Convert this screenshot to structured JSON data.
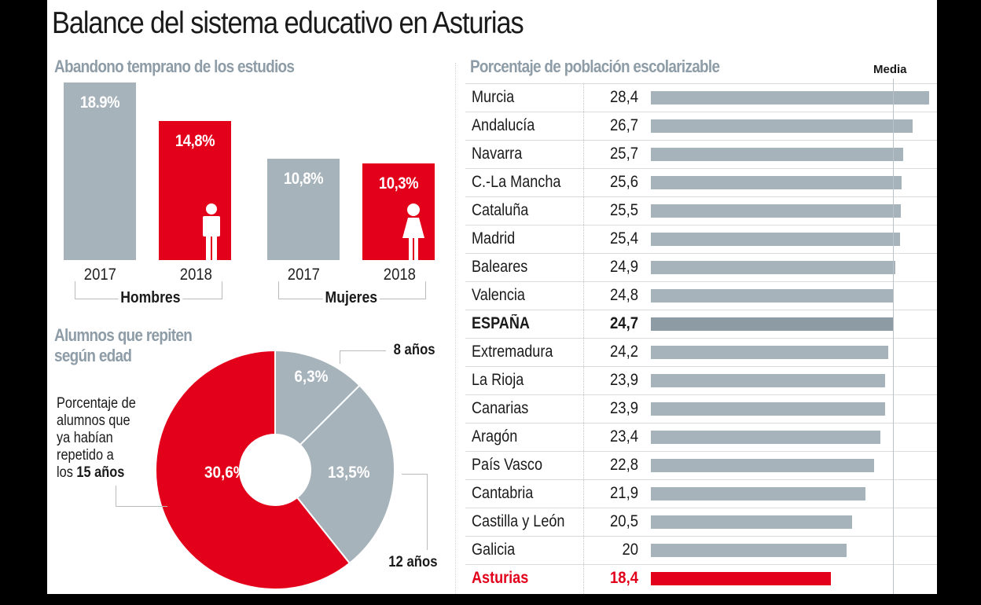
{
  "title": "Balance del sistema educativo en Asturias",
  "colors": {
    "grey": "#a7b3bb",
    "dark_grey": "#8c9ba4",
    "red": "#e2001a",
    "heading": "#8d9ca6"
  },
  "abandono": {
    "title": "Abandono temprano de los estudios",
    "groups": [
      {
        "label": "Hombres",
        "icon": "male-person-icon"
      },
      {
        "label": "Mujeres",
        "icon": "female-person-icon"
      }
    ]
  },
  "repiten": {
    "title_line1": "Alumnos que repiten",
    "title_line2": "según edad",
    "note_lines": [
      "Porcentaje de",
      "alumnos que",
      "ya habían",
      "repetido a"
    ],
    "note_last_prefix": "los ",
    "note_last_bold": "15 años",
    "age_8": "8 años",
    "age_12": "12 años"
  },
  "poblacion": {
    "title": "Porcentaje de población escolarizable",
    "media_label": "Media"
  },
  "chart_data": [
    {
      "type": "bar",
      "title": "Abandono temprano de los estudios",
      "categories": [
        "Hombres 2017",
        "Hombres 2018",
        "Mujeres 2017",
        "Mujeres 2018"
      ],
      "groups": [
        "Hombres",
        "Mujeres"
      ],
      "years": [
        "2017",
        "2018"
      ],
      "values": [
        18.9,
        14.8,
        10.8,
        10.3
      ],
      "labels": [
        "18.9%",
        "14,8%",
        "10,8%",
        "10,3%"
      ],
      "unit": "%",
      "xlabel": "",
      "ylabel": "",
      "ylim": [
        0,
        20
      ]
    },
    {
      "type": "pie",
      "title": "Alumnos que repiten según edad",
      "categories": [
        "8 años",
        "12 años",
        "15 años"
      ],
      "values": [
        6.3,
        13.5,
        30.6
      ],
      "labels": [
        "6,3%",
        "13,5%",
        "30,6%"
      ],
      "donut": true
    },
    {
      "type": "bar",
      "orientation": "horizontal",
      "title": "Porcentaje de población escolarizable",
      "categories": [
        "Murcia",
        "Andalucía",
        "Navarra",
        "C.-La Mancha",
        "Cataluña",
        "Madrid",
        "Baleares",
        "Valencia",
        "ESPAÑA",
        "Extremadura",
        "La Rioja",
        "Canarias",
        "Aragón",
        "País Vasco",
        "Cantabria",
        "Castilla y León",
        "Galicia",
        "Asturias"
      ],
      "values": [
        28.4,
        26.7,
        25.7,
        25.6,
        25.5,
        25.4,
        24.9,
        24.8,
        24.7,
        24.2,
        23.9,
        23.9,
        23.4,
        22.8,
        21.9,
        20.5,
        20,
        18.4
      ],
      "labels": [
        "28,4",
        "26,7",
        "25,7",
        "25,6",
        "25,5",
        "25,4",
        "24,9",
        "24,8",
        "24,7",
        "24,2",
        "23,9",
        "23,9",
        "23,4",
        "22,8",
        "21,9",
        "20,5",
        "20",
        "18,4"
      ],
      "styles": [
        "normal",
        "normal",
        "normal",
        "normal",
        "normal",
        "normal",
        "normal",
        "normal",
        "bold",
        "normal",
        "normal",
        "normal",
        "normal",
        "normal",
        "normal",
        "normal",
        "normal",
        "highlight"
      ],
      "reference_line": {
        "label": "Media",
        "value": 24.7
      },
      "xlim": [
        0,
        28.4
      ]
    }
  ]
}
